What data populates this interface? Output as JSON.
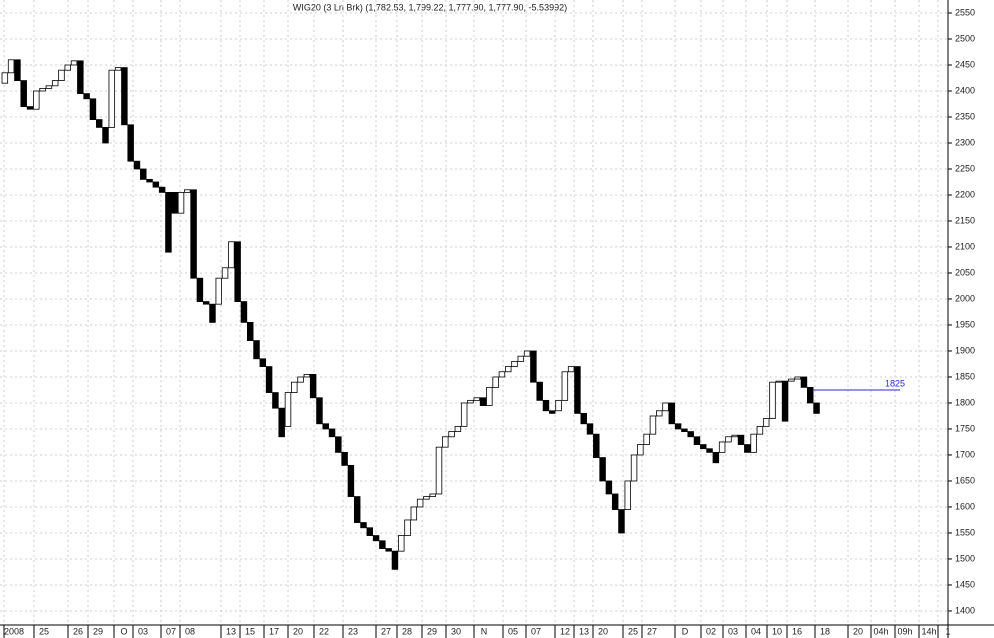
{
  "chart_data": {
    "type": "linebreak",
    "title": "WIG20 (3 Ln Brk)  (1,782.53, 1,799.22, 1,777.90, 1,777.90, -5.53992)",
    "up_color": "#ffffff",
    "down_color": "#000000",
    "outline_color": "#000000",
    "open": [
      2415,
      2435,
      2460,
      2420,
      2370,
      2365,
      2400,
      2405,
      2410,
      2420,
      2440,
      2450,
      2458,
      2395,
      2385,
      2345,
      2330,
      2330,
      2440,
      2445,
      2335,
      2265,
      2250,
      2230,
      2225,
      2215,
      2205,
      2205,
      2165,
      2205,
      2210,
      2040,
      1995,
      1990,
      1990,
      2040,
      2060,
      2110,
      1995,
      1955,
      1920,
      1885,
      1870,
      1820,
      1790,
      1755,
      1820,
      1840,
      1850,
      1855,
      1810,
      1760,
      1750,
      1735,
      1705,
      1680,
      1620,
      1570,
      1560,
      1545,
      1535,
      1520,
      1515,
      1515,
      1545,
      1575,
      1600,
      1615,
      1620,
      1625,
      1715,
      1735,
      1745,
      1755,
      1800,
      1805,
      1810,
      1795,
      1830,
      1850,
      1860,
      1870,
      1880,
      1890,
      1900,
      1840,
      1805,
      1785,
      1785,
      1805,
      1860,
      1870,
      1780,
      1760,
      1740,
      1695,
      1650,
      1625,
      1595,
      1595,
      1650,
      1700,
      1720,
      1740,
      1775,
      1785,
      1800,
      1760,
      1750,
      1745,
      1735,
      1720,
      1712,
      1705,
      1705,
      1725,
      1735,
      1738,
      1720,
      1705,
      1740,
      1755,
      1770,
      1840,
      1842,
      1842,
      1846,
      1850,
      1830,
      1800
    ],
    "close": [
      2435,
      2460,
      2420,
      2370,
      2365,
      2400,
      2405,
      2410,
      2420,
      2440,
      2450,
      2458,
      2395,
      2385,
      2345,
      2330,
      2300,
      2440,
      2445,
      2335,
      2265,
      2250,
      2230,
      2225,
      2215,
      2205,
      2090,
      2165,
      2205,
      2210,
      2040,
      1995,
      1990,
      1955,
      2040,
      2060,
      2110,
      1995,
      1955,
      1920,
      1885,
      1870,
      1820,
      1790,
      1735,
      1820,
      1840,
      1850,
      1855,
      1810,
      1760,
      1750,
      1735,
      1705,
      1680,
      1620,
      1570,
      1560,
      1545,
      1535,
      1520,
      1515,
      1480,
      1545,
      1575,
      1600,
      1615,
      1620,
      1625,
      1715,
      1735,
      1745,
      1755,
      1800,
      1805,
      1810,
      1795,
      1830,
      1850,
      1860,
      1870,
      1880,
      1890,
      1900,
      1840,
      1805,
      1785,
      1780,
      1805,
      1860,
      1870,
      1780,
      1760,
      1740,
      1695,
      1650,
      1625,
      1595,
      1550,
      1650,
      1700,
      1720,
      1740,
      1775,
      1785,
      1800,
      1760,
      1750,
      1745,
      1735,
      1720,
      1712,
      1705,
      1685,
      1725,
      1735,
      1738,
      1720,
      1705,
      1740,
      1755,
      1770,
      1840,
      1842,
      1765,
      1846,
      1850,
      1830,
      1800,
      1780
    ],
    "categories": [
      "2008",
      "25",
      "26",
      "29",
      "O",
      "03",
      "07",
      "08",
      "13",
      "15",
      "17",
      "20",
      "22",
      "23",
      "27",
      "28",
      "29",
      "30",
      "N",
      "05",
      "07",
      "12",
      "13",
      "20",
      "25",
      "27",
      "D",
      "02",
      "03",
      "04",
      "10",
      "16",
      "18",
      "20",
      "04h",
      "09h",
      "14h",
      "1"
    ],
    "ylim": [
      1373,
      2575
    ],
    "yticks": [
      1400,
      1450,
      1500,
      1550,
      1600,
      1650,
      1700,
      1750,
      1800,
      1850,
      1900,
      1950,
      2000,
      2050,
      2100,
      2150,
      2200,
      2250,
      2300,
      2350,
      2400,
      2450,
      2500,
      2550
    ],
    "grid": true,
    "reference_line": 1825,
    "reference_color": "#2a2ad0"
  }
}
